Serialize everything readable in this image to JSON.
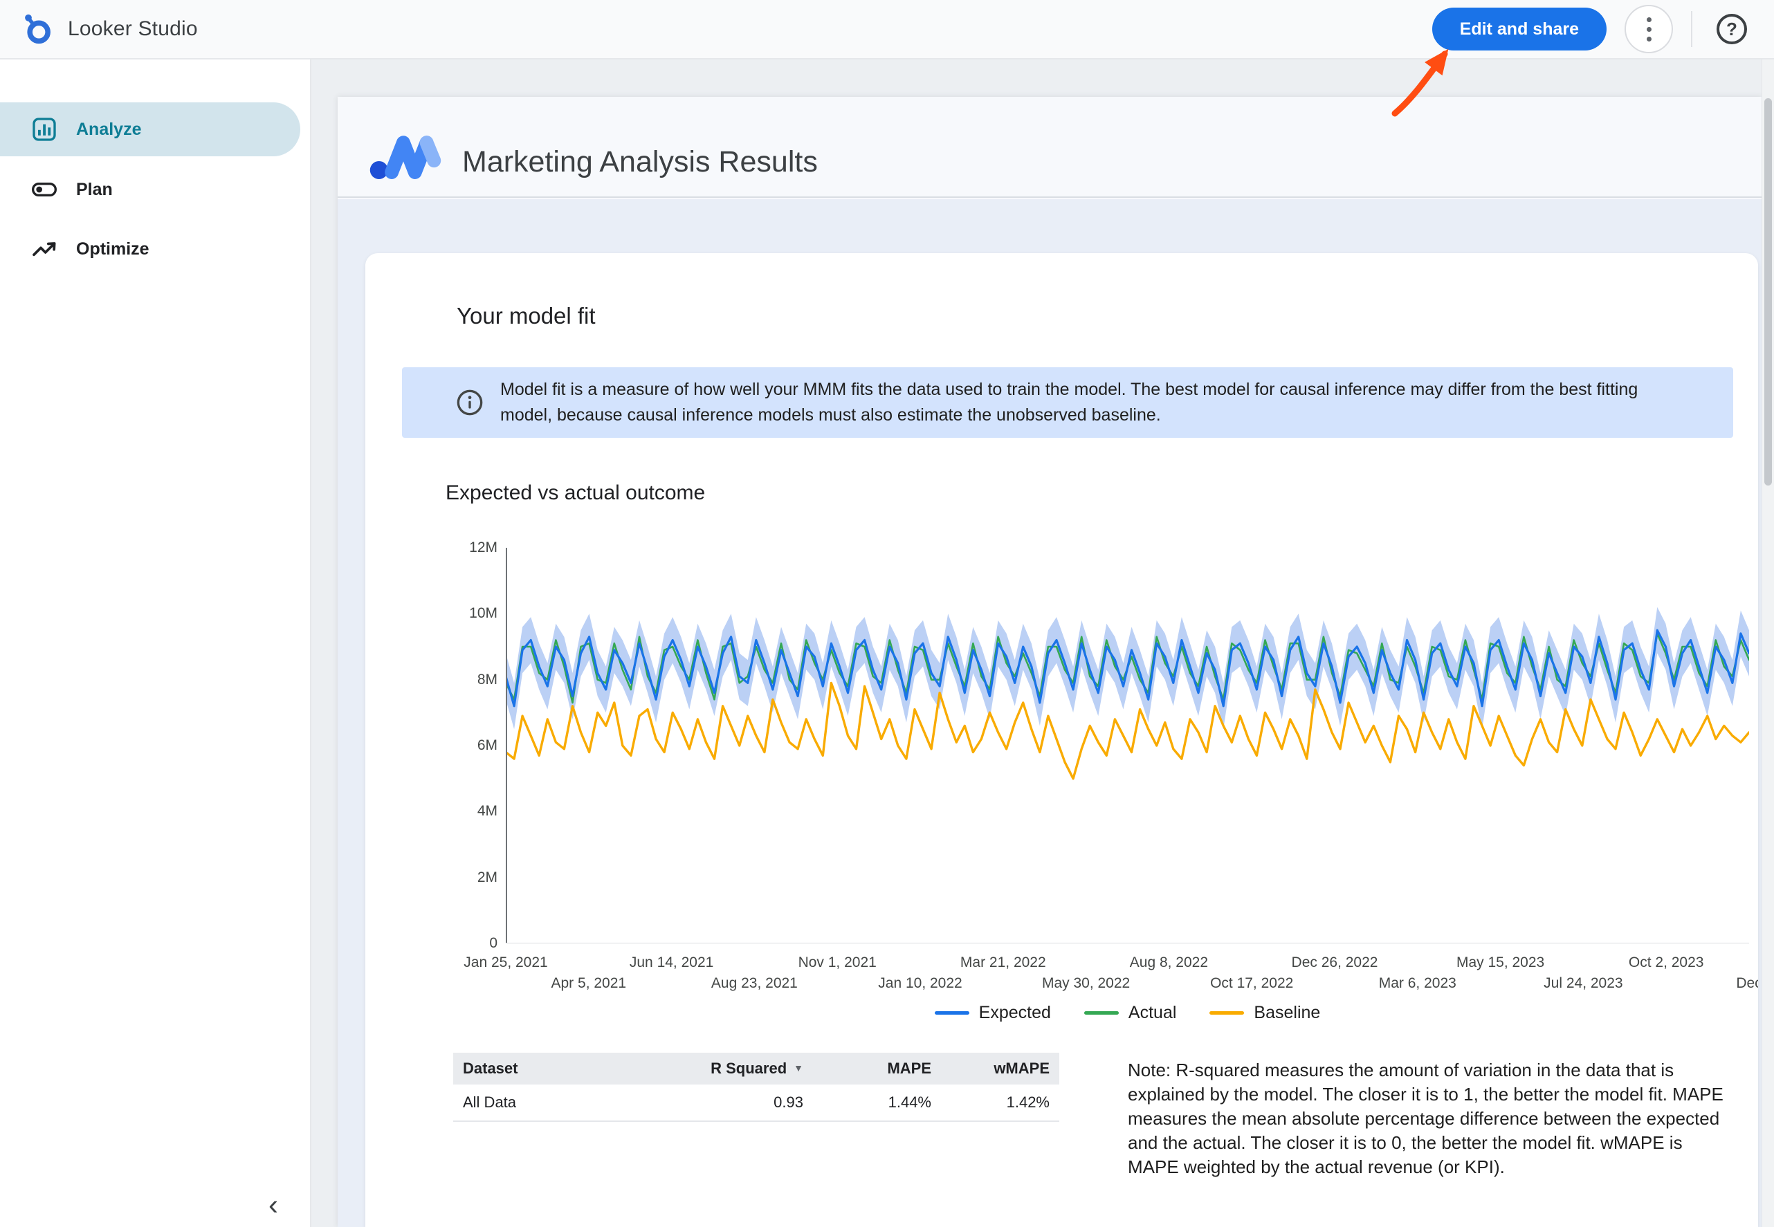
{
  "header": {
    "app_name": "Looker Studio",
    "edit_share_label": "Edit and share"
  },
  "icons": {
    "help_glyph": "?",
    "collapse_glyph": "‹",
    "sort_desc_glyph": "▼"
  },
  "colors": {
    "accent": "#1a73e8",
    "banner_bg": "#d3e3fd",
    "sidebar_active_bg": "#d2e4ec",
    "sidebar_active_fg": "#0e7d95",
    "annotation_arrow": "#ff4d12"
  },
  "sidebar": {
    "items": [
      {
        "label": "Analyze",
        "active": true
      },
      {
        "label": "Plan",
        "active": false
      },
      {
        "label": "Optimize",
        "active": false
      }
    ]
  },
  "report": {
    "title": "Marketing Analysis Results",
    "section": {
      "card_title": "Your model fit",
      "info_banner": "Model fit is a measure of how well your MMM fits the data used to train the model. The best model for causal inference may differ from the best fitting model, because causal inference models must also estimate the unobserved baseline.",
      "chart_title": "Expected vs actual outcome",
      "note": "Note: R-squared measures the amount of variation in the data that is explained by the model. The closer it is to 1, the better the model fit. MAPE measures the mean absolute percentage difference between the expected and the actual. The closer it is to 0, the better the model fit. wMAPE is MAPE weighted by the actual revenue (or KPI)."
    },
    "table": {
      "columns": [
        "Dataset",
        "R Squared",
        "MAPE",
        "wMAPE"
      ],
      "rows": [
        [
          "All Data",
          "0.93",
          "1.44%",
          "1.42%"
        ]
      ]
    }
  },
  "chart_data": {
    "type": "line",
    "title": "Expected vs actual outcome",
    "xlabel": "",
    "ylabel": "",
    "ylim_millions": [
      0,
      12
    ],
    "y_ticks": [
      "0",
      "2M",
      "4M",
      "6M",
      "8M",
      "10M",
      "12M"
    ],
    "x_ticks": [
      "Jan 25, 2021",
      "Apr 5, 2021",
      "Jun 14, 2021",
      "Aug 23, 2021",
      "Nov 1, 2021",
      "Jan 10, 2022",
      "Mar 21, 2022",
      "May 30, 2022",
      "Aug 8, 2022",
      "Oct 17, 2022",
      "Dec 26, 2022",
      "Mar 6, 2023",
      "May 15, 2023",
      "Jul 24, 2023",
      "Oct 2, 2023",
      "Dec"
    ],
    "legend_position": "bottom",
    "grid": false,
    "band_halfwidth_millions": 0.7,
    "band_color": "#aac4f2",
    "series": [
      {
        "name": "Expected",
        "color": "#1a73e8",
        "values_millions": [
          8.1,
          7.2,
          8.9,
          9.2,
          8.4,
          7.8,
          9.0,
          8.6,
          7.5,
          8.8,
          9.3,
          8.2,
          7.7,
          8.9,
          8.5,
          7.9,
          9.1,
          8.3,
          7.4,
          8.7,
          9.2,
          8.6,
          7.8,
          9.0,
          8.4,
          7.6,
          8.8,
          9.3,
          8.1,
          7.9,
          9.2,
          8.5,
          7.7,
          8.9,
          8.2,
          7.5,
          9.0,
          8.7,
          7.8,
          9.1,
          8.4,
          7.6,
          8.9,
          9.2,
          8.3,
          7.7,
          9.0,
          8.5,
          7.4,
          8.8,
          9.1,
          8.2,
          7.8,
          9.3,
          8.6,
          7.6,
          8.9,
          8.3,
          7.5,
          9.1,
          8.7,
          7.9,
          9.0,
          8.4,
          7.3,
          8.8,
          9.2,
          8.5,
          7.7,
          9.1,
          8.3,
          7.6,
          9.0,
          8.6,
          7.8,
          8.9,
          8.2,
          7.4,
          9.1,
          8.7,
          7.9,
          9.2,
          8.4,
          7.6,
          8.8,
          8.3,
          7.2,
          8.9,
          9.1,
          8.5,
          7.7,
          9.0,
          8.6,
          7.5,
          8.9,
          9.3,
          8.2,
          7.8,
          9.1,
          8.4,
          7.3,
          8.7,
          9.0,
          8.5,
          7.6,
          8.9,
          8.2,
          7.7,
          9.2,
          8.6,
          7.4,
          8.8,
          9.1,
          8.3,
          7.8,
          9.0,
          8.5,
          7.2,
          8.9,
          9.2,
          8.4,
          7.7,
          9.1,
          8.6,
          7.5,
          8.8,
          8.2,
          7.6,
          9.0,
          8.7,
          7.9,
          9.3,
          8.5,
          7.4,
          8.9,
          9.1,
          8.3,
          7.7,
          9.5,
          9.0,
          7.8,
          8.8,
          9.2,
          8.4,
          7.6,
          9.0,
          8.6,
          7.9,
          9.4,
          8.8
        ]
      },
      {
        "name": "Actual",
        "color": "#34a853",
        "values_millions": [
          7.9,
          7.4,
          9.0,
          9.0,
          8.2,
          8.0,
          9.2,
          8.4,
          7.3,
          9.0,
          9.1,
          8.0,
          7.9,
          9.1,
          8.3,
          7.7,
          9.3,
          8.1,
          7.6,
          8.9,
          9.0,
          8.4,
          8.0,
          9.2,
          8.2,
          7.4,
          9.0,
          9.1,
          7.9,
          8.1,
          9.0,
          8.3,
          7.9,
          9.1,
          8.0,
          7.7,
          9.2,
          8.5,
          8.0,
          8.9,
          8.2,
          7.8,
          9.1,
          9.0,
          8.1,
          7.9,
          9.2,
          8.3,
          7.6,
          9.0,
          8.9,
          8.0,
          8.0,
          9.1,
          8.4,
          7.8,
          9.1,
          8.1,
          7.7,
          9.3,
          8.5,
          8.1,
          8.8,
          8.2,
          7.5,
          9.0,
          9.0,
          8.3,
          7.9,
          9.3,
          8.1,
          7.8,
          9.2,
          8.4,
          8.0,
          8.7,
          8.0,
          7.6,
          9.3,
          8.5,
          8.1,
          9.0,
          8.2,
          7.8,
          9.0,
          8.1,
          7.4,
          9.1,
          8.9,
          8.3,
          7.9,
          9.2,
          8.4,
          7.7,
          9.1,
          9.1,
          8.0,
          8.0,
          9.3,
          8.2,
          7.5,
          8.9,
          8.8,
          8.3,
          7.8,
          9.1,
          8.0,
          7.9,
          9.0,
          8.4,
          7.6,
          9.0,
          8.9,
          8.1,
          8.0,
          9.2,
          8.3,
          7.4,
          9.1,
          9.0,
          8.2,
          7.9,
          9.3,
          8.4,
          7.7,
          9.0,
          8.0,
          7.8,
          9.2,
          8.5,
          8.1,
          9.1,
          8.3,
          7.6,
          9.1,
          8.9,
          8.1,
          7.9,
          9.4,
          8.8,
          8.0,
          9.0,
          9.0,
          8.2,
          7.8,
          9.2,
          8.4,
          8.1,
          9.2,
          8.6
        ]
      },
      {
        "name": "Baseline",
        "color": "#f9ab00",
        "values_millions": [
          5.8,
          5.6,
          6.9,
          6.3,
          5.7,
          6.8,
          6.1,
          5.9,
          7.2,
          6.4,
          5.8,
          7.0,
          6.6,
          7.3,
          6.0,
          5.7,
          6.9,
          7.1,
          6.2,
          5.8,
          7.0,
          6.5,
          5.9,
          6.8,
          6.1,
          5.6,
          7.2,
          6.6,
          6.0,
          6.9,
          6.3,
          5.8,
          7.4,
          6.7,
          6.1,
          5.9,
          6.8,
          6.2,
          5.7,
          7.9,
          7.2,
          6.3,
          5.9,
          7.8,
          7.0,
          6.2,
          6.8,
          6.0,
          5.6,
          7.1,
          6.5,
          5.9,
          7.6,
          6.8,
          6.1,
          6.6,
          5.8,
          6.2,
          7.0,
          6.4,
          5.9,
          6.7,
          7.3,
          6.5,
          5.8,
          6.9,
          6.2,
          5.5,
          5.0,
          5.9,
          6.6,
          6.1,
          5.7,
          6.8,
          6.3,
          5.8,
          7.1,
          6.5,
          6.0,
          6.7,
          5.9,
          5.6,
          6.8,
          6.4,
          5.8,
          7.2,
          6.6,
          6.1,
          6.9,
          6.2,
          5.7,
          7.0,
          6.5,
          5.9,
          6.8,
          6.3,
          5.6,
          7.7,
          7.1,
          6.4,
          5.9,
          7.3,
          6.7,
          6.1,
          6.6,
          6.0,
          5.5,
          6.9,
          6.5,
          5.8,
          7.0,
          6.4,
          5.9,
          6.8,
          6.1,
          5.6,
          7.2,
          6.6,
          6.0,
          6.9,
          6.3,
          5.7,
          5.4,
          6.2,
          6.8,
          6.1,
          5.8,
          7.1,
          6.5,
          6.0,
          7.4,
          6.8,
          6.2,
          5.9,
          7.0,
          6.4,
          5.7,
          6.2,
          6.8,
          6.3,
          5.8,
          6.5,
          6.0,
          6.4,
          6.9,
          6.2,
          6.6,
          6.3,
          6.1,
          6.4
        ]
      }
    ]
  }
}
